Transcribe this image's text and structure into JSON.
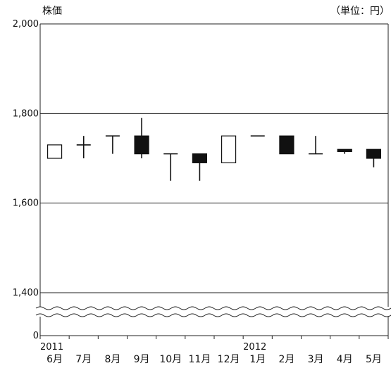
{
  "chart_data": {
    "type": "candlestick",
    "title": "",
    "ylabel": "株価",
    "unit_label": "（単位：円）",
    "ylim": [
      1400,
      2000
    ],
    "axis_break": true,
    "yticks": [
      {
        "value": 2000,
        "label": "2,000"
      },
      {
        "value": 1800,
        "label": "1,800"
      },
      {
        "value": 1600,
        "label": "1,600"
      },
      {
        "value": 1400,
        "label": "1,400"
      },
      {
        "value": 0,
        "label": "0"
      }
    ],
    "grid": true,
    "year_labels": [
      {
        "index": 0,
        "label": "2011"
      },
      {
        "index": 7,
        "label": "2012"
      }
    ],
    "categories": [
      "6月",
      "7月",
      "8月",
      "9月",
      "10月",
      "11月",
      "12月",
      "1月",
      "2月",
      "3月",
      "4月",
      "5月"
    ],
    "candles": [
      {
        "open": 1700,
        "high": 1730,
        "low": 1700,
        "close": 1730
      },
      {
        "open": 1730,
        "high": 1750,
        "low": 1700,
        "close": 1730
      },
      {
        "open": 1750,
        "high": 1750,
        "low": 1710,
        "close": 1750
      },
      {
        "open": 1750,
        "high": 1790,
        "low": 1700,
        "close": 1710
      },
      {
        "open": 1710,
        "high": 1710,
        "low": 1650,
        "close": 1710
      },
      {
        "open": 1710,
        "high": 1710,
        "low": 1650,
        "close": 1690
      },
      {
        "open": 1690,
        "high": 1750,
        "low": 1690,
        "close": 1750
      },
      {
        "open": 1750,
        "high": 1750,
        "low": 1750,
        "close": 1750
      },
      {
        "open": 1750,
        "high": 1750,
        "low": 1710,
        "close": 1710
      },
      {
        "open": 1710,
        "high": 1750,
        "low": 1710,
        "close": 1710
      },
      {
        "open": 1720,
        "high": 1720,
        "low": 1710,
        "close": 1715
      },
      {
        "open": 1720,
        "high": 1720,
        "low": 1680,
        "close": 1700
      }
    ]
  }
}
